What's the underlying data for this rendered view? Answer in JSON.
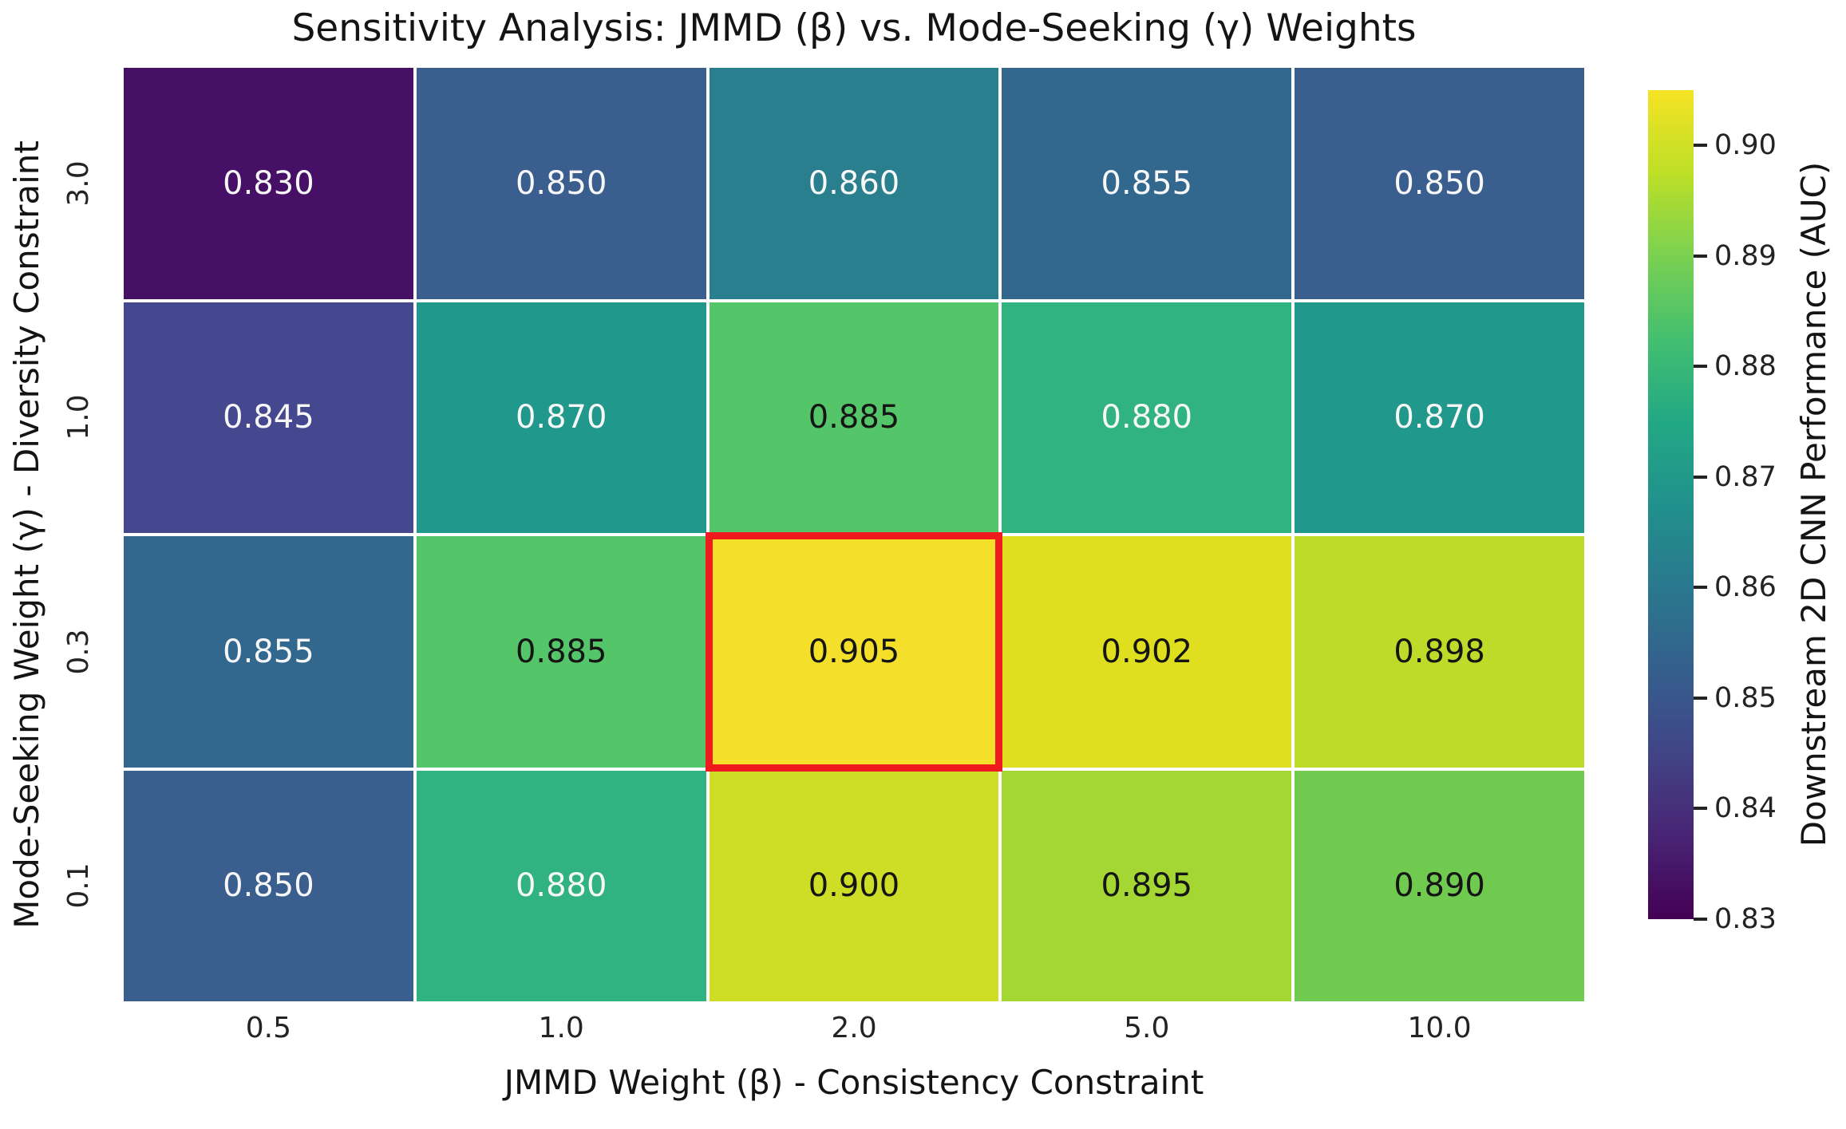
{
  "title": "Sensitivity Analysis: JMMD (β) vs. Mode-Seeking (γ) Weights",
  "chart_data": {
    "type": "heatmap",
    "colormap": "viridis",
    "title": "Sensitivity Analysis: JMMD (β) vs. Mode-Seeking (γ) Weights",
    "xlabel": "JMMD Weight (β) - Consistency Constraint",
    "ylabel": "Mode-Seeking Weight (γ) - Diversity Constraint",
    "x_categories": [
      "0.5",
      "1.0",
      "2.0",
      "5.0",
      "10.0"
    ],
    "y_categories": [
      "3.0",
      "1.0",
      "0.3",
      "0.1"
    ],
    "values": [
      [
        0.83,
        0.85,
        0.86,
        0.855,
        0.85
      ],
      [
        0.845,
        0.87,
        0.885,
        0.88,
        0.87
      ],
      [
        0.855,
        0.885,
        0.905,
        0.902,
        0.898
      ],
      [
        0.85,
        0.88,
        0.9,
        0.895,
        0.89
      ]
    ],
    "cell_labels": [
      [
        "0.830",
        "0.850",
        "0.860",
        "0.855",
        "0.850"
      ],
      [
        "0.845",
        "0.870",
        "0.885",
        "0.880",
        "0.870"
      ],
      [
        "0.855",
        "0.885",
        "0.905",
        "0.902",
        "0.898"
      ],
      [
        "0.850",
        "0.880",
        "0.900",
        "0.895",
        "0.890"
      ]
    ],
    "cell_colors": [
      [
        "#451065",
        "#3a5f8e",
        "#2a7f8e",
        "#32688e",
        "#3a5f8e"
      ],
      [
        "#46488f",
        "#20988c",
        "#54c568",
        "#30b381",
        "#20988c"
      ],
      [
        "#32688e",
        "#54c568",
        "#f4e02b",
        "#dfdf20",
        "#bedb29"
      ],
      [
        "#3a5f8e",
        "#30b381",
        "#cedd26",
        "#a4d734",
        "#70ca50"
      ]
    ],
    "cell_text_colors": [
      [
        "#f7f7f7",
        "#f7f7f7",
        "#f7f7f7",
        "#f7f7f7",
        "#f7f7f7"
      ],
      [
        "#f7f7f7",
        "#f7f7f7",
        "#151515",
        "#f7f7f7",
        "#f7f7f7"
      ],
      [
        "#f7f7f7",
        "#151515",
        "#151515",
        "#151515",
        "#151515"
      ],
      [
        "#f7f7f7",
        "#f7f7f7",
        "#151515",
        "#151515",
        "#151515"
      ]
    ],
    "highlight_cell": {
      "row": 2,
      "col": 2,
      "y_category": "0.3",
      "x_category": "2.0",
      "value": 0.905,
      "border_color": "#ef1a1d"
    },
    "colorbar": {
      "label": "Downstream 2D CNN Performance (AUC)",
      "vmin": 0.83,
      "vmax": 0.905,
      "ticks": [
        {
          "label": "0.90",
          "value": 0.9
        },
        {
          "label": "0.89",
          "value": 0.89
        },
        {
          "label": "0.88",
          "value": 0.88
        },
        {
          "label": "0.87",
          "value": 0.87
        },
        {
          "label": "0.86",
          "value": 0.86
        },
        {
          "label": "0.85",
          "value": 0.85
        },
        {
          "label": "0.84",
          "value": 0.84
        },
        {
          "label": "0.83",
          "value": 0.83
        }
      ],
      "gradient_stops_bottom_to_top": [
        "#440154",
        "#482475",
        "#414487",
        "#355f8d",
        "#2a788e",
        "#21918c",
        "#22a884",
        "#44bf70",
        "#7ad151",
        "#bddf26",
        "#f6e325"
      ]
    },
    "grid": false,
    "legend_position": "right-colorbar"
  }
}
